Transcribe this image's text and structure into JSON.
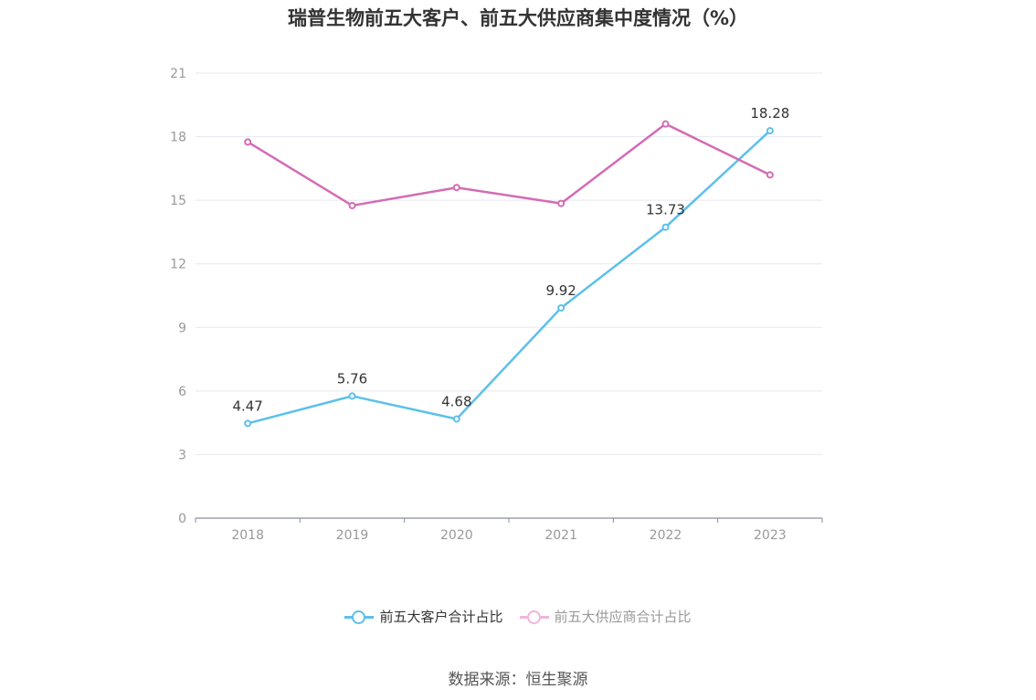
{
  "chart_data": {
    "type": "line",
    "title": "瑞普生物前五大客户、前五大供应商集中度情况（%）",
    "categories": [
      "2018",
      "2019",
      "2020",
      "2021",
      "2022",
      "2023"
    ],
    "ylim": [
      0,
      21
    ],
    "yticks": [
      "0",
      "3",
      "6",
      "9",
      "12",
      "15",
      "18",
      "21"
    ],
    "grid": true,
    "legend_position": "bottom",
    "series": [
      {
        "name": "前五大客户合计占比",
        "color": "#5bc0eb",
        "values": [
          4.47,
          5.76,
          4.68,
          9.92,
          13.73,
          18.28
        ],
        "labels": [
          "4.47",
          "5.76",
          "4.68",
          "9.92",
          "13.73",
          "18.28"
        ],
        "show_labels": true
      },
      {
        "name": "前五大供应商合计占比",
        "color": "#d46bb4",
        "values": [
          17.75,
          14.75,
          15.6,
          14.85,
          18.6,
          16.2
        ],
        "show_labels": false
      }
    ]
  },
  "legend": {
    "items": [
      {
        "label": "前五大客户合计占比",
        "color": "#5bc0eb",
        "text_color": "#333333"
      },
      {
        "label": "前五大供应商合计占比",
        "color": "#f0b6dc",
        "text_color": "#999999"
      }
    ]
  },
  "source": "数据来源：恒生聚源"
}
